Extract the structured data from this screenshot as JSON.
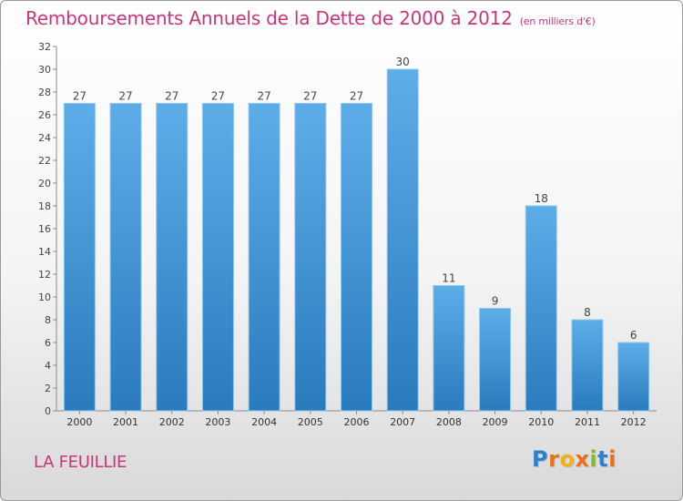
{
  "title": "Remboursements Annuels de la Dette de 2000 à 2012",
  "unit": "(en milliers d'€)",
  "commune": "LA FEUILLIE",
  "logo": "Proxiti",
  "colors": {
    "bar_light": "#5dade8",
    "bar_dark": "#2a7bbd",
    "title": "#c8367a"
  },
  "chart_data": {
    "type": "bar",
    "categories": [
      "2000",
      "2001",
      "2002",
      "2003",
      "2004",
      "2005",
      "2006",
      "2007",
      "2008",
      "2009",
      "2010",
      "2011",
      "2012"
    ],
    "values": [
      27,
      27,
      27,
      27,
      27,
      27,
      27,
      30,
      11,
      9,
      18,
      8,
      6
    ],
    "ylim": [
      0,
      32
    ],
    "yticks": [
      0,
      2,
      4,
      6,
      8,
      10,
      12,
      14,
      16,
      18,
      20,
      22,
      24,
      26,
      28,
      30,
      32
    ],
    "grid": false,
    "xlabel": "",
    "ylabel": ""
  }
}
